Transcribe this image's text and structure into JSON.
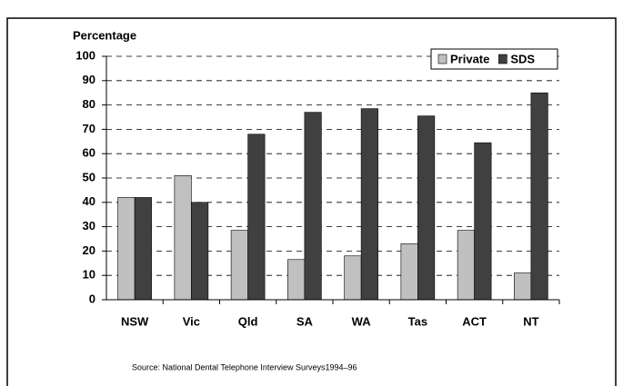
{
  "chart_data": {
    "type": "bar",
    "y_label": "Percentage",
    "source": "Source:  National Dental Telephone Interview Surveys1994–96",
    "categories": [
      "NSW",
      "Vic",
      "Qld",
      "SA",
      "WA",
      "Tas",
      "ACT",
      "NT"
    ],
    "series": [
      {
        "name": "Private",
        "color": "#c0c0c0",
        "values": [
          42,
          51,
          28.5,
          16.5,
          18,
          23,
          28.5,
          11
        ]
      },
      {
        "name": "SDS",
        "color": "#404040",
        "values": [
          42,
          40,
          68,
          77,
          78.5,
          75.5,
          64.5,
          85
        ]
      }
    ],
    "ylim": [
      0,
      100
    ],
    "yticks": [
      0,
      10,
      20,
      30,
      40,
      50,
      60,
      70,
      80,
      90,
      100
    ],
    "grid": true,
    "legend": "top-right"
  }
}
